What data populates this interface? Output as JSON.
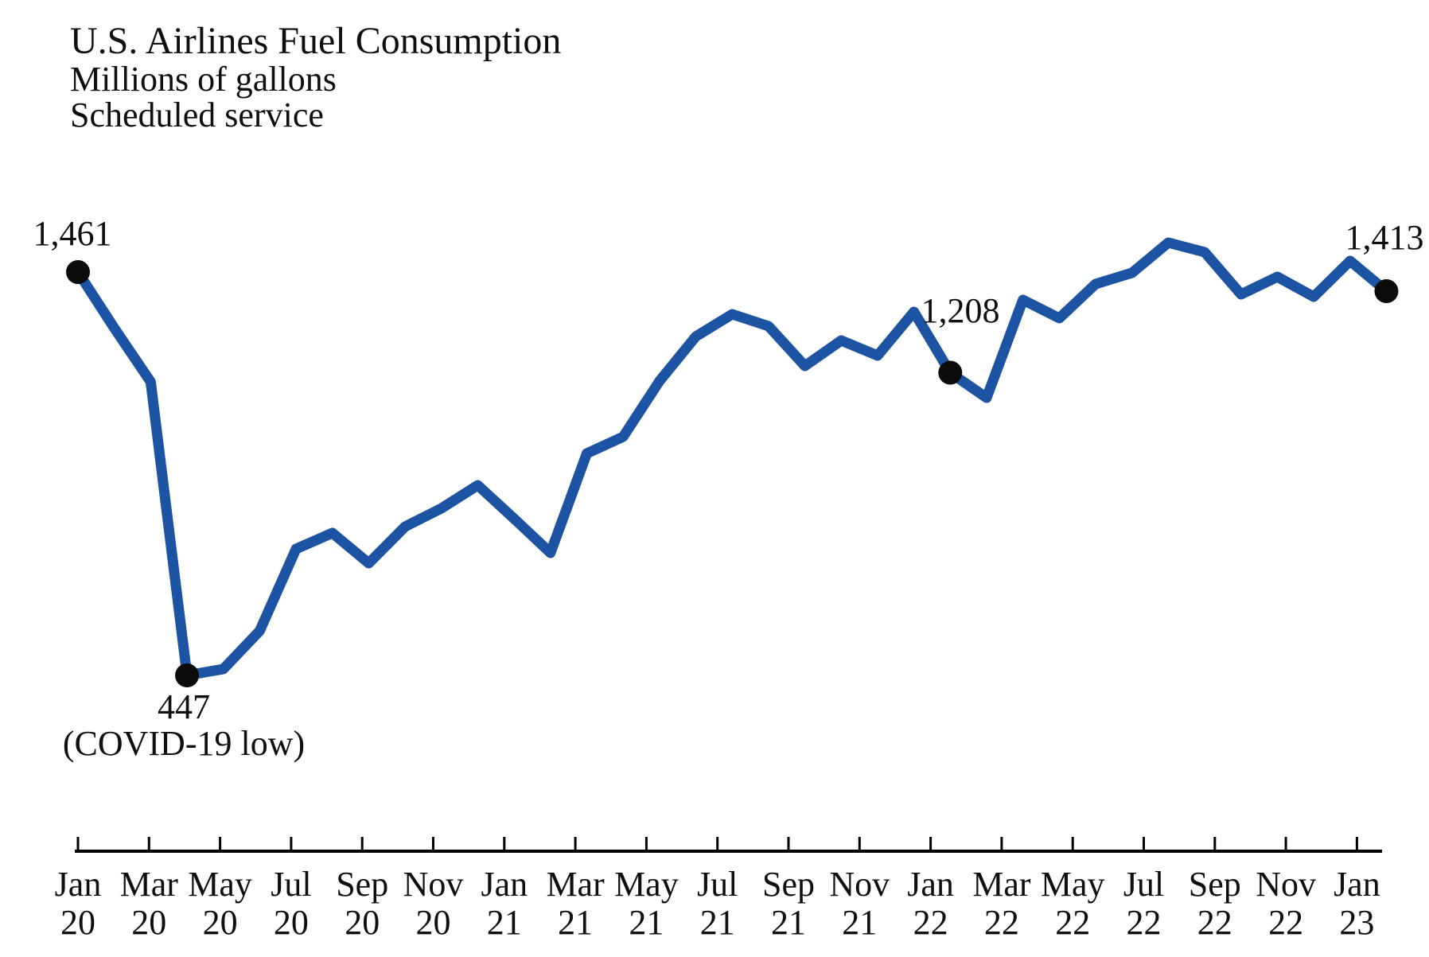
{
  "header": {
    "title": "U.S. Airlines Fuel Consumption",
    "subtitle1": "Millions of gallons",
    "subtitle2": "Scheduled service"
  },
  "colors": {
    "line": "#1d53a3",
    "marker": "#0b0b0b",
    "axis": "#000000",
    "text": "#0f0f0f"
  },
  "chart_data": {
    "type": "line",
    "title": "U.S. Airlines Fuel Consumption",
    "ylabel": "Millions of gallons",
    "subtitle": "Scheduled service",
    "legend": "none",
    "grid": "off",
    "y_axis_shown": false,
    "x": [
      "Jan 2020",
      "Feb 2020",
      "Mar 2020",
      "Apr 2020",
      "May 2020",
      "Jun 2020",
      "Jul 2020",
      "Aug 2020",
      "Sep 2020",
      "Oct 2020",
      "Nov 2020",
      "Dec 2020",
      "Jan 2021",
      "Feb 2021",
      "Mar 2021",
      "Apr 2021",
      "May 2021",
      "Jun 2021",
      "Jul 2021",
      "Aug 2021",
      "Sep 2021",
      "Oct 2021",
      "Nov 2021",
      "Dec 2021",
      "Jan 2022",
      "Feb 2022",
      "Mar 2022",
      "Apr 2022",
      "May 2022",
      "Jun 2022",
      "Jul 2022",
      "Aug 2022",
      "Sep 2022",
      "Oct 2022",
      "Nov 2022",
      "Dec 2022",
      "Jan 2023"
    ],
    "values": [
      1461,
      1320,
      1185,
      447,
      463,
      559,
      765,
      805,
      729,
      821,
      867,
      925,
      841,
      755,
      1005,
      1047,
      1187,
      1299,
      1355,
      1325,
      1225,
      1289,
      1251,
      1361,
      1208,
      1145,
      1391,
      1345,
      1431,
      1459,
      1535,
      1511,
      1405,
      1449,
      1399,
      1489,
      1413
    ],
    "x_tick_labels": [
      {
        "month": "Jan",
        "year": "20"
      },
      {
        "month": "Mar",
        "year": "20"
      },
      {
        "month": "May",
        "year": "20"
      },
      {
        "month": "Jul",
        "year": "20"
      },
      {
        "month": "Sep",
        "year": "20"
      },
      {
        "month": "Nov",
        "year": "20"
      },
      {
        "month": "Jan",
        "year": "21"
      },
      {
        "month": "Mar",
        "year": "21"
      },
      {
        "month": "May",
        "year": "21"
      },
      {
        "month": "Jul",
        "year": "21"
      },
      {
        "month": "Sep",
        "year": "21"
      },
      {
        "month": "Nov",
        "year": "21"
      },
      {
        "month": "Jan",
        "year": "22"
      },
      {
        "month": "Mar",
        "year": "22"
      },
      {
        "month": "May",
        "year": "22"
      },
      {
        "month": "Jul",
        "year": "22"
      },
      {
        "month": "Sep",
        "year": "22"
      },
      {
        "month": "Nov",
        "year": "22"
      },
      {
        "month": "Jan",
        "year": "23"
      }
    ],
    "annotated_points": [
      {
        "index": 0,
        "x": "Jan 2020",
        "value": 1461,
        "value_label": "1,461",
        "note": ""
      },
      {
        "index": 3,
        "x": "Apr 2020",
        "value": 447,
        "value_label": "447",
        "note": "(COVID-19 low)"
      },
      {
        "index": 24,
        "x": "Jan 2022",
        "value": 1208,
        "value_label": "1,208",
        "note": ""
      },
      {
        "index": 36,
        "x": "Jan 2023",
        "value": 1413,
        "value_label": "1,413",
        "note": ""
      }
    ]
  }
}
